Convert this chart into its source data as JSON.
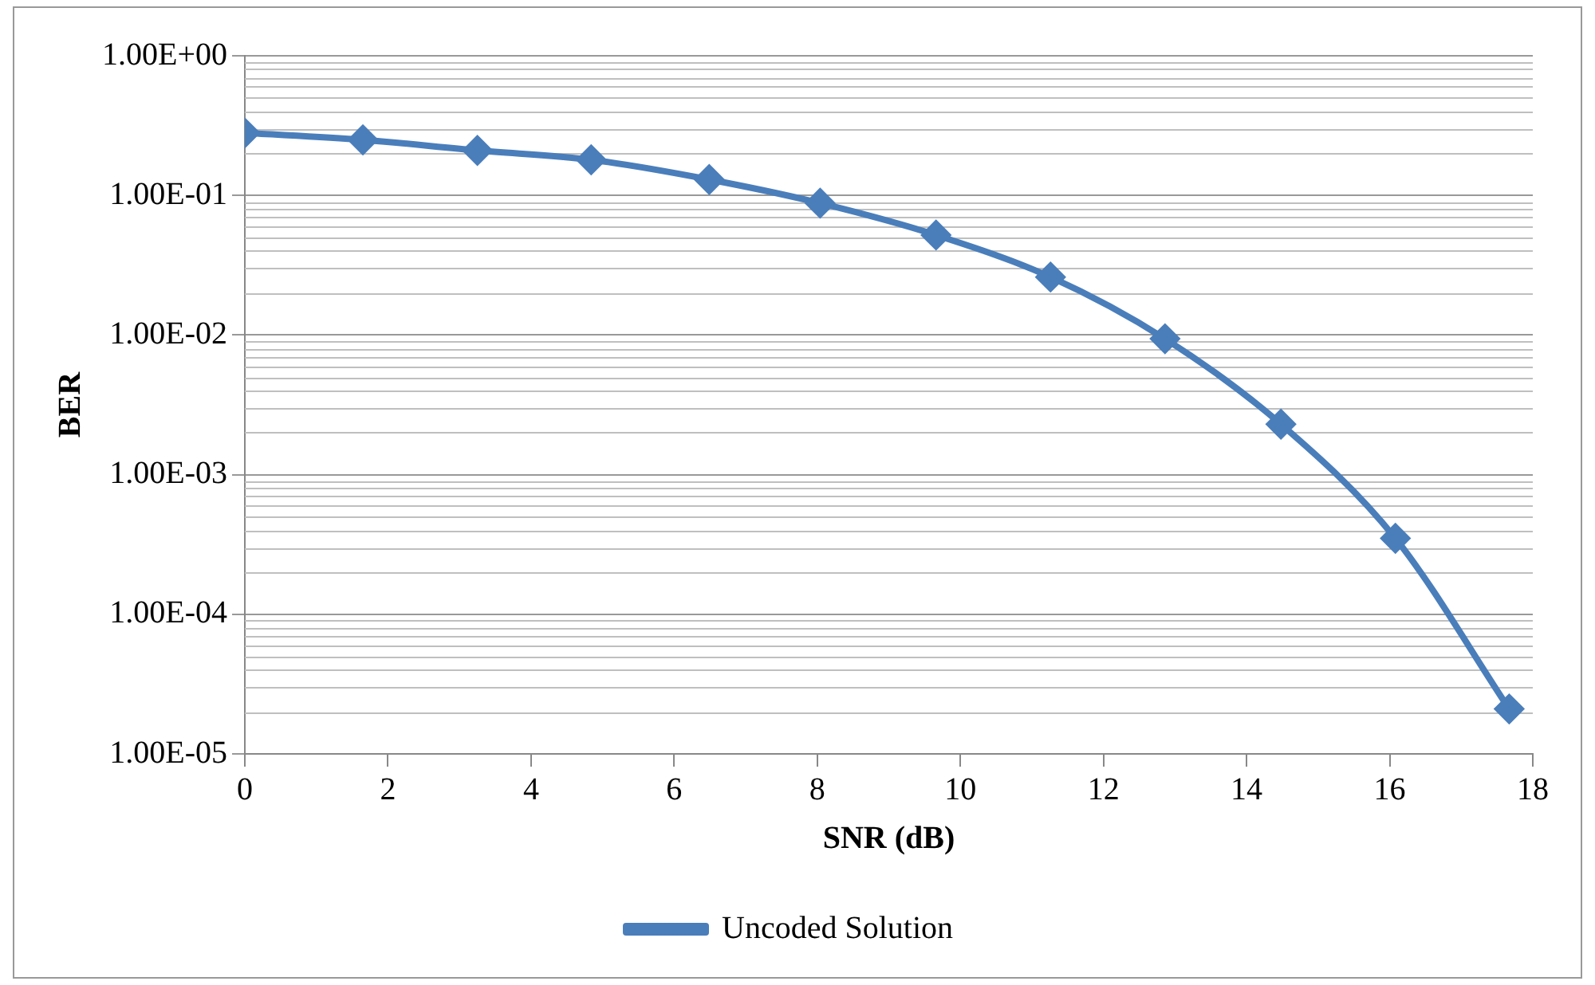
{
  "chart_data": {
    "type": "line",
    "xlabel": "SNR (dB)",
    "ylabel": "BER",
    "x": [
      0,
      1.65,
      3.25,
      4.84,
      6.49,
      8.04,
      9.66,
      11.26,
      12.86,
      14.48,
      16.08,
      17.67
    ],
    "series": [
      {
        "name": "Uncoded Solution",
        "color": "#4a7ebb",
        "values": [
          0.28,
          0.25,
          0.21,
          0.18,
          0.13,
          0.088,
          0.052,
          0.026,
          0.0094,
          0.0023,
          0.00035,
          2.1e-05
        ]
      }
    ],
    "xlim": [
      0,
      18
    ],
    "xticks": [
      0,
      2,
      4,
      6,
      8,
      10,
      12,
      14,
      16,
      18
    ],
    "ylim": [
      1e-05,
      1
    ],
    "yticks": [
      {
        "value": 1,
        "label": "1.00E+00"
      },
      {
        "value": 0.1,
        "label": "1.00E-01"
      },
      {
        "value": 0.01,
        "label": "1.00E-02"
      },
      {
        "value": 0.001,
        "label": "1.00E-03"
      },
      {
        "value": 0.0001,
        "label": "1.00E-04"
      },
      {
        "value": 1e-05,
        "label": "1.00E-05"
      }
    ],
    "log": "y",
    "grid": "y",
    "legend": "bottom",
    "marker": "diamond",
    "line_style": "solid"
  }
}
